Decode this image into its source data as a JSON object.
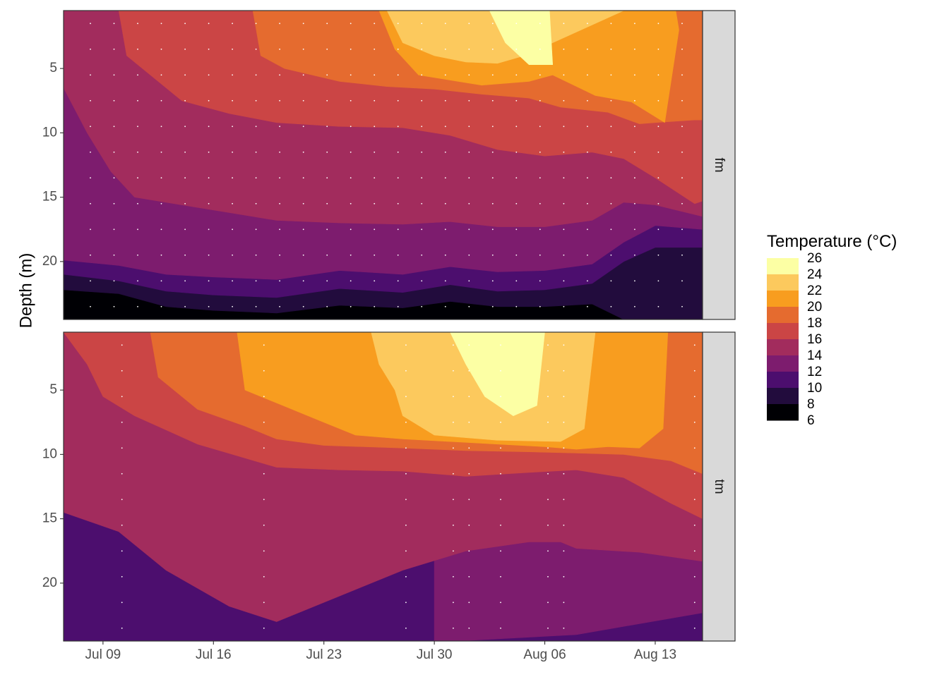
{
  "chart_data": {
    "type": "heatmap",
    "subtype": "filled-contour",
    "ylabel": "Depth (m)",
    "y_reversed": true,
    "x_ticks": [
      "Jul 09",
      "Jul 16",
      "Jul 23",
      "Jul 30",
      "Aug 06",
      "Aug 13"
    ],
    "x_tick_days": [
      8,
      15,
      22,
      29,
      36,
      43
    ],
    "xlim_days": [
      5.5,
      46
    ],
    "y_ticks": [
      5,
      10,
      15,
      20
    ],
    "ylim": [
      0.5,
      24.5
    ],
    "legend": {
      "title": "Temperature (°C)",
      "levels": [
        26,
        24,
        22,
        20,
        18,
        16,
        14,
        12,
        10,
        8,
        6
      ],
      "colors": [
        "#FCFFA4",
        "#FCC95D",
        "#F89D1F",
        "#E56B2F",
        "#CB4545",
        "#A22C5D",
        "#7D1C6E",
        "#4C0E6E",
        "#220C3D",
        "#000004"
      ],
      "placement": "right"
    },
    "panels": [
      {
        "strip": "fm",
        "sample_days": [
          7.2,
          8.7,
          10.2,
          11.7,
          13.2,
          14.7,
          16.2,
          17.7,
          19.2,
          20.7,
          22.2,
          23.7,
          25.2,
          26.7,
          28.2,
          29.7,
          31.2,
          32.7,
          34.2,
          35.7,
          37.2,
          38.7,
          40.2,
          41.7,
          43.2,
          44.7
        ],
        "sample_depths": [
          1.5,
          3.5,
          5.5,
          7.5,
          9.5,
          11.5,
          13.5,
          15.5,
          17.5,
          19.5,
          21.5,
          23.5
        ],
        "contours": [
          {
            "band": "8-10",
            "boundary": [
              [
                5.5,
                22.2
              ],
              [
                9,
                22.5
              ],
              [
                12,
                23.5
              ],
              [
                15,
                23.8
              ],
              [
                19,
                24
              ],
              [
                23,
                23.4
              ],
              [
                27,
                23.6
              ],
              [
                30,
                23.1
              ],
              [
                33,
                23.5
              ],
              [
                36,
                23.5
              ],
              [
                39,
                23.3
              ],
              [
                41,
                24.5
              ],
              [
                46,
                24.5
              ]
            ]
          },
          {
            "band": "10-12",
            "boundary": [
              [
                5.5,
                21
              ],
              [
                9,
                21.5
              ],
              [
                12,
                22.3
              ],
              [
                15,
                22.6
              ],
              [
                19,
                22.8
              ],
              [
                23,
                22.1
              ],
              [
                27,
                22.4
              ],
              [
                30,
                21.8
              ],
              [
                33,
                22.3
              ],
              [
                36,
                22.2
              ],
              [
                39,
                21.7
              ],
              [
                41,
                20
              ],
              [
                43,
                18.9
              ],
              [
                46,
                18.9
              ]
            ]
          },
          {
            "band": "12-14",
            "boundary": [
              [
                5.5,
                19.9
              ],
              [
                9,
                20.3
              ],
              [
                12,
                21
              ],
              [
                15,
                21.2
              ],
              [
                19,
                21.4
              ],
              [
                23,
                20.7
              ],
              [
                27,
                21
              ],
              [
                30,
                20.4
              ],
              [
                33,
                20.8
              ],
              [
                36,
                20.7
              ],
              [
                39,
                20.2
              ],
              [
                41,
                18.5
              ],
              [
                43,
                17.2
              ],
              [
                46,
                17.5
              ]
            ]
          },
          {
            "band": "14-16",
            "boundary": [
              [
                5.5,
                6.5
              ],
              [
                7,
                10
              ],
              [
                8.5,
                13
              ],
              [
                10,
                15
              ],
              [
                13,
                15.6
              ],
              [
                16,
                16.2
              ],
              [
                19,
                16.8
              ],
              [
                23,
                17
              ],
              [
                27,
                17.1
              ],
              [
                30,
                16.9
              ],
              [
                33,
                17.3
              ],
              [
                36,
                17.3
              ],
              [
                39,
                16.8
              ],
              [
                41,
                15.4
              ],
              [
                43,
                15.6
              ],
              [
                46,
                16.5
              ]
            ]
          },
          {
            "band": "16-18",
            "boundary": [
              [
                5.5,
                -1
              ],
              [
                9,
                0.5
              ],
              [
                9.5,
                4
              ],
              [
                11,
                5.5
              ],
              [
                13,
                7.5
              ],
              [
                16,
                8.5
              ],
              [
                19,
                9.2
              ],
              [
                23,
                9.5
              ],
              [
                27,
                9.6
              ],
              [
                30,
                10.2
              ],
              [
                33,
                11.3
              ],
              [
                36,
                11.8
              ],
              [
                39,
                11.5
              ],
              [
                41,
                12
              ],
              [
                43,
                13.5
              ],
              [
                45.5,
                15.5
              ],
              [
                46,
                15.3
              ]
            ]
          },
          {
            "band": "18-20",
            "boundary": [
              [
                17.5,
                0.5
              ],
              [
                18,
                4
              ],
              [
                19.5,
                5
              ],
              [
                23,
                6
              ],
              [
                26,
                6.4
              ],
              [
                29,
                6.6
              ],
              [
                32,
                7
              ],
              [
                35,
                7.3
              ],
              [
                37,
                8
              ],
              [
                40,
                8.4
              ],
              [
                42,
                9.3
              ],
              [
                43,
                9.2
              ],
              [
                45.5,
                9
              ],
              [
                46,
                9
              ]
            ]
          },
          {
            "band": "20-22",
            "boundary": [
              [
                25.5,
                0.5
              ],
              [
                26.5,
                3.5
              ],
              [
                28,
                5.5
              ],
              [
                32,
                6.3
              ],
              [
                35,
                6
              ],
              [
                36.5,
                5.5
              ],
              [
                39.2,
                7.1
              ],
              [
                41.5,
                7.6
              ],
              [
                43.6,
                9.2
              ],
              [
                44.5,
                2
              ],
              [
                44.3,
                0.5
              ]
            ]
          },
          {
            "band": "22-24",
            "boundary": [
              [
                26,
                0.5
              ],
              [
                27,
                3
              ],
              [
                29,
                4
              ],
              [
                31,
                4.5
              ],
              [
                33,
                4.6
              ],
              [
                35,
                3.9
              ],
              [
                36.5,
                3
              ],
              [
                41,
                0.5
              ]
            ]
          },
          {
            "band": "24-26",
            "boundary": [
              [
                32.5,
                0.5
              ],
              [
                33.5,
                3
              ],
              [
                35,
                4.7
              ],
              [
                36.5,
                4.7
              ],
              [
                36.3,
                0.5
              ]
            ]
          }
        ]
      },
      {
        "strip": "tm",
        "sample_days": [
          9.2,
          18.2,
          27.2,
          30.2,
          31.2,
          33.2,
          36.2,
          37.2,
          45.5
        ],
        "sample_depths": [
          1.5,
          3.5,
          5.5,
          7.5,
          9.5,
          11.5,
          13.5,
          15.5,
          17.5,
          19.5,
          21.5,
          23.5
        ],
        "contours": [
          {
            "band": "12-14",
            "boundary": [
              [
                29,
                24.6
              ],
              [
                38,
                24
              ],
              [
                46,
                22.3
              ]
            ]
          },
          {
            "band": "14-16",
            "boundary": [
              [
                5.5,
                14.5
              ],
              [
                9,
                16
              ],
              [
                12,
                19
              ],
              [
                16,
                21.8
              ],
              [
                19,
                23
              ],
              [
                23,
                21
              ],
              [
                27,
                19
              ],
              [
                31,
                17.5
              ],
              [
                35,
                16.8
              ],
              [
                37,
                16.8
              ],
              [
                38,
                17.3
              ],
              [
                42,
                17.6
              ],
              [
                46,
                18.3
              ]
            ]
          },
          {
            "band": "16-18",
            "boundary": [
              [
                5.5,
                0.5
              ],
              [
                7,
                3
              ],
              [
                8,
                5.5
              ],
              [
                10,
                7
              ],
              [
                14,
                9.2
              ],
              [
                19,
                11
              ],
              [
                23,
                11.2
              ],
              [
                27,
                11.3
              ],
              [
                31,
                11.7
              ],
              [
                35,
                11.4
              ],
              [
                38,
                11.2
              ],
              [
                41,
                11.8
              ],
              [
                44,
                13.8
              ],
              [
                46,
                15
              ]
            ]
          },
          {
            "band": "18-20",
            "boundary": [
              [
                11,
                0.5
              ],
              [
                11.5,
                4
              ],
              [
                14,
                6.5
              ],
              [
                17,
                7.8
              ],
              [
                19,
                8.8
              ],
              [
                22,
                9.3
              ],
              [
                27,
                9.5
              ],
              [
                31,
                9.7
              ],
              [
                35,
                9.8
              ],
              [
                38,
                9.9
              ],
              [
                41,
                10
              ],
              [
                44,
                10.5
              ],
              [
                46,
                11.5
              ]
            ]
          },
          {
            "band": "20-22",
            "boundary": [
              [
                16.5,
                0.5
              ],
              [
                17,
                5
              ],
              [
                19,
                6
              ],
              [
                22,
                7.5
              ],
              [
                24,
                8.5
              ],
              [
                27,
                8.8
              ],
              [
                30,
                9
              ],
              [
                33,
                9.2
              ],
              [
                36,
                9.4
              ],
              [
                38,
                9.6
              ],
              [
                40,
                9.4
              ],
              [
                42,
                9.5
              ],
              [
                43.5,
                8
              ],
              [
                43.8,
                0.5
              ]
            ]
          },
          {
            "band": "22-24",
            "boundary": [
              [
                25,
                0.5
              ],
              [
                25.5,
                3
              ],
              [
                26.5,
                5
              ],
              [
                27,
                7
              ],
              [
                29,
                8.5
              ],
              [
                33,
                8.9
              ],
              [
                37,
                9
              ],
              [
                38.5,
                8
              ],
              [
                39.2,
                0.5
              ]
            ]
          },
          {
            "band": "24-26",
            "boundary": [
              [
                30,
                0.5
              ],
              [
                31,
                3
              ],
              [
                32.2,
                5.5
              ],
              [
                34,
                7
              ],
              [
                35.5,
                6.2
              ],
              [
                36,
                0.5
              ]
            ]
          }
        ]
      }
    ]
  }
}
